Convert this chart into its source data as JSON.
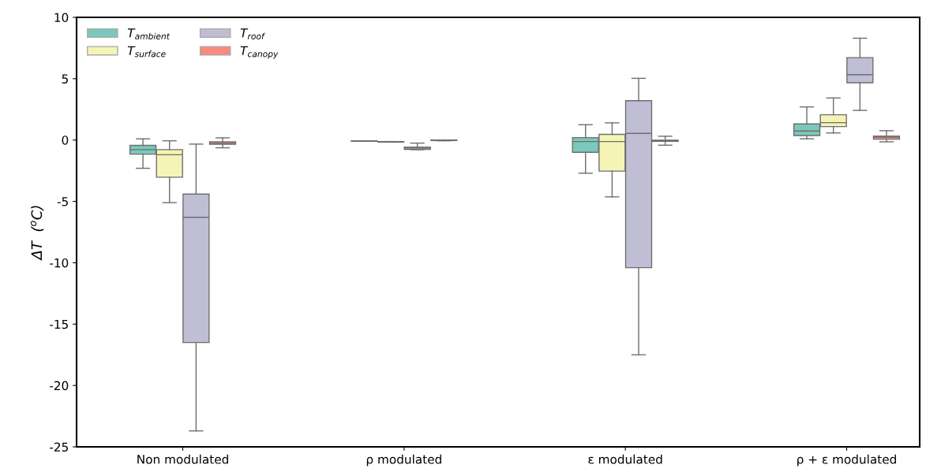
{
  "chart_data": {
    "type": "box",
    "ylabel": "ΔT  ($^{o}$C)",
    "categories": [
      "Non modulated",
      "ρ modulated",
      "ε modulated",
      "ρ + ε modulated"
    ],
    "ylim": [
      -25,
      10
    ],
    "yticks": [
      -25,
      -20,
      -15,
      -10,
      -5,
      0,
      5,
      10
    ],
    "grid": false,
    "legend": "top left",
    "series": [
      {
        "name": "T$_{ambient}$",
        "color": "#7bc8bc",
        "boxes": [
          {
            "low": -2.3,
            "q1": -1.15,
            "median": -0.78,
            "q3": -0.44,
            "high": 0.1
          },
          {
            "low": -0.09,
            "q1": -0.09,
            "median": -0.08,
            "q3": -0.07,
            "high": -0.07
          },
          {
            "low": -2.7,
            "q1": -1.0,
            "median": -0.12,
            "q3": 0.2,
            "high": 1.25
          },
          {
            "low": 0.1,
            "q1": 0.37,
            "median": 0.74,
            "q3": 1.31,
            "high": 2.7
          }
        ]
      },
      {
        "name": "T$_{surface}$",
        "color": "#f4f4b6",
        "boxes": [
          {
            "low": -5.1,
            "q1": -3.03,
            "median": -1.2,
            "q3": -0.78,
            "high": -0.06
          },
          {
            "low": -0.17,
            "q1": -0.16,
            "median": -0.15,
            "q3": -0.13,
            "high": -0.12
          },
          {
            "low": -4.63,
            "q1": -2.53,
            "median": -0.12,
            "q3": 0.46,
            "high": 1.4
          },
          {
            "low": 0.58,
            "q1": 1.1,
            "median": 1.42,
            "q3": 2.06,
            "high": 3.43
          }
        ]
      },
      {
        "name": "T$_{roof}$",
        "color": "#bfbed5",
        "boxes": [
          {
            "low": -23.7,
            "q1": -16.5,
            "median": -6.3,
            "q3": -4.4,
            "high": -0.33
          },
          {
            "low": -0.78,
            "q1": -0.76,
            "median": -0.65,
            "q3": -0.57,
            "high": -0.25
          },
          {
            "low": -17.5,
            "q1": -10.4,
            "median": 0.54,
            "q3": 3.21,
            "high": 5.03
          },
          {
            "low": 2.42,
            "q1": 4.67,
            "median": 5.33,
            "q3": 6.72,
            "high": 8.3
          }
        ]
      },
      {
        "name": "T$_{canopy}$",
        "color": "#fa8a7e",
        "boxes": [
          {
            "low": -0.63,
            "q1": -0.35,
            "median": -0.25,
            "q3": -0.14,
            "high": 0.18
          },
          {
            "low": -0.06,
            "q1": -0.03,
            "median": -0.02,
            "q3": 0.0,
            "high": 0.0
          },
          {
            "low": -0.42,
            "q1": -0.1,
            "median": -0.05,
            "q3": -0.01,
            "high": 0.31
          },
          {
            "low": -0.14,
            "q1": 0.07,
            "median": 0.24,
            "q3": 0.33,
            "high": 0.76
          }
        ]
      }
    ]
  }
}
